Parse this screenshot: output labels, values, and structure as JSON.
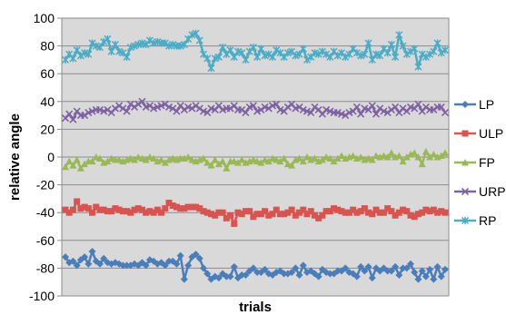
{
  "chart_data": {
    "type": "line",
    "title": "",
    "xlabel": "trials",
    "ylabel": "relative angle",
    "ylim": [
      -100,
      100
    ],
    "yticks": [
      100,
      80,
      60,
      40,
      20,
      0,
      -20,
      -40,
      -60,
      -80,
      -100
    ],
    "grid": true,
    "legend_position": "right",
    "num_trials": 100,
    "series": [
      {
        "name": "LP",
        "color": "#4a7ebb",
        "marker": "diamond",
        "values": [
          -72,
          -76,
          -75,
          -78,
          -74,
          -72,
          -77,
          -68,
          -75,
          -77,
          -73,
          -76,
          -77,
          -76,
          -77,
          -78,
          -78,
          -78,
          -77,
          -78,
          -76,
          -78,
          -74,
          -75,
          -77,
          -76,
          -78,
          -75,
          -75,
          -77,
          -71,
          -88,
          -78,
          -72,
          -70,
          -73,
          -80,
          -84,
          -88,
          -86,
          -87,
          -84,
          -86,
          -86,
          -79,
          -87,
          -85,
          -85,
          -82,
          -80,
          -83,
          -83,
          -81,
          -84,
          -85,
          -83,
          -82,
          -84,
          -84,
          -83,
          -80,
          -85,
          -78,
          -83,
          -82,
          -84,
          -86,
          -81,
          -83,
          -84,
          -84,
          -82,
          -82,
          -80,
          -83,
          -84,
          -86,
          -79,
          -82,
          -79,
          -87,
          -80,
          -82,
          -80,
          -82,
          -82,
          -79,
          -85,
          -80,
          -80,
          -77,
          -83,
          -88,
          -82,
          -86,
          -81,
          -88,
          -79,
          -86,
          -81
        ]
      },
      {
        "name": "ULP",
        "color": "#d9534f",
        "marker": "square",
        "values": [
          -38,
          -40,
          -38,
          -32,
          -37,
          -36,
          -37,
          -40,
          -36,
          -38,
          -38,
          -39,
          -39,
          -37,
          -38,
          -39,
          -39,
          -40,
          -38,
          -37,
          -38,
          -40,
          -39,
          -40,
          -38,
          -40,
          -37,
          -33,
          -35,
          -36,
          -37,
          -37,
          -36,
          -36,
          -36,
          -37,
          -39,
          -40,
          -41,
          -42,
          -40,
          -40,
          -44,
          -42,
          -48,
          -40,
          -41,
          -39,
          -39,
          -43,
          -41,
          -41,
          -39,
          -42,
          -41,
          -38,
          -41,
          -41,
          -40,
          -38,
          -42,
          -40,
          -38,
          -41,
          -39,
          -42,
          -44,
          -42,
          -39,
          -39,
          -37,
          -38,
          -39,
          -40,
          -40,
          -38,
          -40,
          -39,
          -37,
          -40,
          -41,
          -38,
          -40,
          -40,
          -37,
          -39,
          -42,
          -40,
          -38,
          -39,
          -42,
          -43,
          -41,
          -40,
          -38,
          -39,
          -38,
          -40,
          -39,
          -40
        ]
      },
      {
        "name": "FP",
        "color": "#98b954",
        "marker": "triangle",
        "values": [
          -7,
          -3,
          -6,
          -2,
          -8,
          -5,
          -3,
          -3,
          0,
          -1,
          -4,
          -3,
          -1,
          -2,
          -2,
          -3,
          -2,
          -1,
          -2,
          0,
          -1,
          -2,
          0,
          -1,
          -3,
          -2,
          -4,
          -2,
          -1,
          -2,
          -1,
          -1,
          0,
          -2,
          -3,
          -2,
          -1,
          -4,
          -6,
          -2,
          -5,
          -3,
          -8,
          -3,
          -3,
          -4,
          -2,
          -4,
          -3,
          -2,
          -3,
          -4,
          -2,
          -3,
          -1,
          -2,
          -3,
          -1,
          -5,
          -6,
          -2,
          -1,
          -3,
          0,
          -2,
          -1,
          -3,
          -2,
          0,
          -1,
          -3,
          -1,
          1,
          -1,
          0,
          1,
          -1,
          0,
          -2,
          -1,
          -2,
          1,
          0,
          1,
          0,
          3,
          0,
          1,
          -3,
          0,
          2,
          3,
          0,
          -5,
          4,
          0,
          2,
          0,
          1,
          3
        ]
      },
      {
        "name": "URP",
        "color": "#7e62a1",
        "marker": "x",
        "values": [
          28,
          31,
          27,
          33,
          30,
          30,
          32,
          33,
          34,
          34,
          33,
          34,
          32,
          35,
          37,
          35,
          33,
          38,
          36,
          38,
          40,
          36,
          37,
          35,
          36,
          37,
          38,
          36,
          35,
          33,
          37,
          34,
          36,
          35,
          37,
          35,
          33,
          32,
          35,
          34,
          37,
          34,
          35,
          35,
          37,
          34,
          34,
          32,
          36,
          37,
          33,
          34,
          36,
          35,
          37,
          38,
          34,
          33,
          36,
          38,
          35,
          36,
          34,
          33,
          32,
          36,
          34,
          31,
          34,
          33,
          32,
          32,
          31,
          30,
          32,
          33,
          36,
          31,
          35,
          34,
          37,
          31,
          35,
          33,
          32,
          34,
          36,
          32,
          35,
          33,
          36,
          35,
          38,
          33,
          36,
          34,
          34,
          36,
          36,
          32
        ]
      },
      {
        "name": "RP",
        "color": "#4bacc6",
        "marker": "star",
        "values": [
          70,
          74,
          71,
          77,
          73,
          75,
          74,
          82,
          80,
          79,
          83,
          85,
          76,
          81,
          76,
          75,
          72,
          79,
          80,
          81,
          82,
          81,
          84,
          82,
          83,
          82,
          82,
          80,
          81,
          80,
          80,
          81,
          85,
          88,
          89,
          84,
          74,
          71,
          64,
          71,
          72,
          79,
          74,
          77,
          72,
          76,
          75,
          70,
          76,
          79,
          72,
          78,
          73,
          74,
          72,
          77,
          75,
          72,
          75,
          76,
          73,
          74,
          78,
          70,
          72,
          75,
          74,
          76,
          74,
          72,
          76,
          73,
          75,
          72,
          74,
          78,
          75,
          73,
          74,
          82,
          70,
          74,
          73,
          78,
          75,
          81,
          72,
          88,
          80,
          74,
          76,
          78,
          65,
          74,
          72,
          74,
          76,
          82,
          75,
          77
        ]
      }
    ]
  }
}
